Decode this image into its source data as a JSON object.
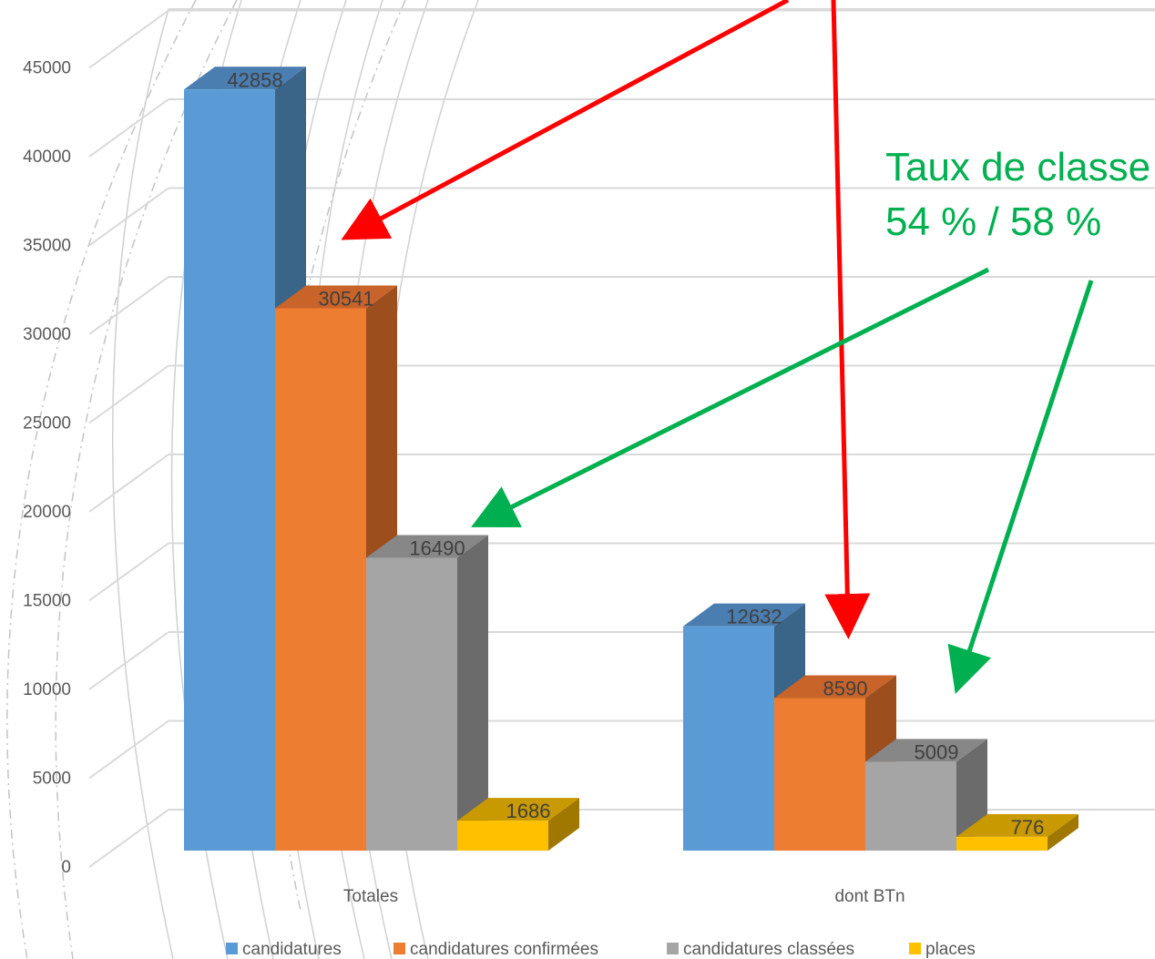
{
  "chart_data": {
    "type": "bar",
    "style": "3d-clustered-column",
    "categories": [
      "Totales",
      "dont BTn"
    ],
    "series": [
      {
        "name": "candidatures",
        "values": [
          42858,
          12632
        ],
        "color": "#5b9bd5",
        "side": "#3a6488",
        "top": "#4a7db0"
      },
      {
        "name": "candidatures confirmées",
        "values": [
          30541,
          8590
        ],
        "color": "#ed7d31",
        "side": "#9c4e1d",
        "top": "#c8632a"
      },
      {
        "name": "candidatures classées",
        "values": [
          16490,
          5009
        ],
        "color": "#a5a5a5",
        "side": "#6b6b6b",
        "top": "#878787"
      },
      {
        "name": "places",
        "values": [
          1686,
          776
        ],
        "color": "#ffc000",
        "side": "#a07800",
        "top": "#c99900"
      }
    ],
    "y_ticks": [
      0,
      5000,
      10000,
      15000,
      20000,
      25000,
      30000,
      35000,
      40000,
      45000
    ],
    "ylim": [
      0,
      45000
    ],
    "grid": true,
    "legend": "bottom",
    "annotation": {
      "text_line1": "Taux de classe",
      "text_line2": "54 % / 58 %",
      "color": "#00b050"
    },
    "arrow_colors": {
      "red": "#ff0000",
      "green": "#00b050"
    }
  }
}
